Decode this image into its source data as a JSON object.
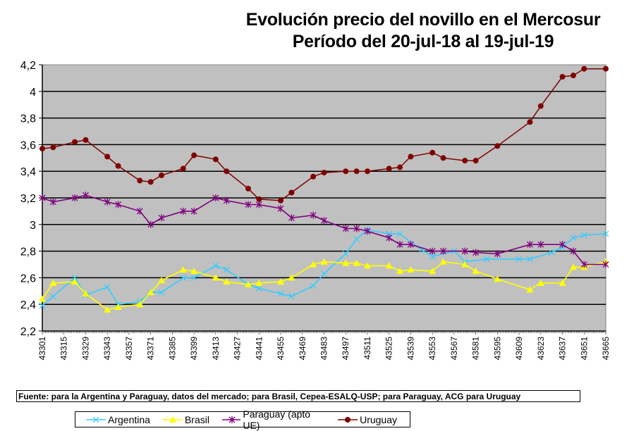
{
  "title": {
    "line1": "Evolución precio del novillo en el Mercosur",
    "line2": "Período del 20-jul-18 al 19-jul-19"
  },
  "source_note": "Fuente: para la Argentina y Paraguay, datos del mercado; para Brasil, Cepea-ESALQ-USP; para Paraguay, ACG para Uruguay",
  "chart_data": {
    "type": "line",
    "title": "Evolución precio del novillo en el Mercosur — Período del 20-jul-18 al 19-jul-19",
    "xlabel": "",
    "ylabel": "",
    "xlim": [
      43301,
      43665
    ],
    "ylim": [
      2.2,
      4.2
    ],
    "x_ticks": [
      "43301",
      "43315",
      "43329",
      "43343",
      "43357",
      "43371",
      "43385",
      "43399",
      "43413",
      "43427",
      "43441",
      "43455",
      "43469",
      "43483",
      "43497",
      "43511",
      "43525",
      "43539",
      "43553",
      "43567",
      "43581",
      "43595",
      "43609",
      "43623",
      "43637",
      "43651",
      "43665"
    ],
    "y_ticks": [
      "2,2",
      "2,4",
      "2,6",
      "2,8",
      "3",
      "3,2",
      "3,4",
      "3,6",
      "3,8",
      "4",
      "4,2"
    ],
    "grid": true,
    "plot_background": "#c0c0c0",
    "legend_position": "bottom",
    "series": [
      {
        "name": "Argentina",
        "color": "#33ccff",
        "marker": "x",
        "points": [
          [
            43301,
            2.39
          ],
          [
            43308,
            2.46
          ],
          [
            43322,
            2.6
          ],
          [
            43329,
            2.47
          ],
          [
            43343,
            2.53
          ],
          [
            43350,
            2.4
          ],
          [
            43364,
            2.42
          ],
          [
            43371,
            2.49
          ],
          [
            43378,
            2.49
          ],
          [
            43392,
            2.6
          ],
          [
            43399,
            2.6
          ],
          [
            43413,
            2.69
          ],
          [
            43420,
            2.66
          ],
          [
            43434,
            2.55
          ],
          [
            43441,
            2.52
          ],
          [
            43455,
            2.48
          ],
          [
            43462,
            2.46
          ],
          [
            43476,
            2.54
          ],
          [
            43483,
            2.63
          ],
          [
            43497,
            2.78
          ],
          [
            43504,
            2.89
          ],
          [
            43511,
            2.96
          ],
          [
            43525,
            2.93
          ],
          [
            43532,
            2.93
          ],
          [
            43546,
            2.81
          ],
          [
            43553,
            2.76
          ],
          [
            43567,
            2.8
          ],
          [
            43574,
            2.72
          ],
          [
            43588,
            2.74
          ],
          [
            43609,
            2.74
          ],
          [
            43616,
            2.74
          ],
          [
            43630,
            2.79
          ],
          [
            43637,
            2.83
          ],
          [
            43644,
            2.9
          ],
          [
            43651,
            2.92
          ],
          [
            43665,
            2.93
          ]
        ]
      },
      {
        "name": "Brasil",
        "color": "#ffff00",
        "marker": "triangle",
        "points": [
          [
            43301,
            2.44
          ],
          [
            43308,
            2.56
          ],
          [
            43322,
            2.57
          ],
          [
            43329,
            2.48
          ],
          [
            43343,
            2.36
          ],
          [
            43350,
            2.38
          ],
          [
            43364,
            2.4
          ],
          [
            43371,
            2.49
          ],
          [
            43378,
            2.58
          ],
          [
            43392,
            2.66
          ],
          [
            43399,
            2.65
          ],
          [
            43413,
            2.6
          ],
          [
            43420,
            2.57
          ],
          [
            43434,
            2.55
          ],
          [
            43441,
            2.56
          ],
          [
            43455,
            2.57
          ],
          [
            43462,
            2.6
          ],
          [
            43476,
            2.7
          ],
          [
            43483,
            2.72
          ],
          [
            43497,
            2.71
          ],
          [
            43504,
            2.71
          ],
          [
            43511,
            2.69
          ],
          [
            43525,
            2.69
          ],
          [
            43532,
            2.65
          ],
          [
            43539,
            2.66
          ],
          [
            43553,
            2.65
          ],
          [
            43560,
            2.72
          ],
          [
            43574,
            2.7
          ],
          [
            43581,
            2.65
          ],
          [
            43595,
            2.59
          ],
          [
            43616,
            2.51
          ],
          [
            43623,
            2.56
          ],
          [
            43637,
            2.56
          ],
          [
            43644,
            2.68
          ],
          [
            43651,
            2.68
          ],
          [
            43665,
            2.72
          ]
        ]
      },
      {
        "name": "Paraguay (apto UE)",
        "color": "#800080",
        "marker": "asterisk",
        "points": [
          [
            43301,
            3.2
          ],
          [
            43308,
            3.17
          ],
          [
            43322,
            3.2
          ],
          [
            43329,
            3.22
          ],
          [
            43343,
            3.17
          ],
          [
            43350,
            3.15
          ],
          [
            43364,
            3.1
          ],
          [
            43371,
            3.0
          ],
          [
            43378,
            3.05
          ],
          [
            43392,
            3.1
          ],
          [
            43399,
            3.1
          ],
          [
            43413,
            3.2
          ],
          [
            43420,
            3.18
          ],
          [
            43434,
            3.15
          ],
          [
            43441,
            3.15
          ],
          [
            43455,
            3.12
          ],
          [
            43462,
            3.05
          ],
          [
            43476,
            3.07
          ],
          [
            43483,
            3.03
          ],
          [
            43497,
            2.97
          ],
          [
            43504,
            2.97
          ],
          [
            43511,
            2.95
          ],
          [
            43525,
            2.9
          ],
          [
            43532,
            2.85
          ],
          [
            43539,
            2.85
          ],
          [
            43553,
            2.8
          ],
          [
            43560,
            2.8
          ],
          [
            43574,
            2.8
          ],
          [
            43581,
            2.79
          ],
          [
            43595,
            2.78
          ],
          [
            43616,
            2.85
          ],
          [
            43623,
            2.85
          ],
          [
            43637,
            2.85
          ],
          [
            43644,
            2.8
          ],
          [
            43651,
            2.7
          ],
          [
            43665,
            2.7
          ]
        ]
      },
      {
        "name": "Uruguay",
        "color": "#800000",
        "marker": "circle",
        "points": [
          [
            43301,
            3.57
          ],
          [
            43308,
            3.58
          ],
          [
            43322,
            3.62
          ],
          [
            43329,
            3.635
          ],
          [
            43343,
            3.51
          ],
          [
            43350,
            3.44
          ],
          [
            43364,
            3.33
          ],
          [
            43371,
            3.32
          ],
          [
            43378,
            3.37
          ],
          [
            43392,
            3.42
          ],
          [
            43399,
            3.52
          ],
          [
            43413,
            3.49
          ],
          [
            43420,
            3.4
          ],
          [
            43434,
            3.27
          ],
          [
            43441,
            3.19
          ],
          [
            43455,
            3.18
          ],
          [
            43462,
            3.24
          ],
          [
            43476,
            3.36
          ],
          [
            43483,
            3.39
          ],
          [
            43497,
            3.4
          ],
          [
            43504,
            3.4
          ],
          [
            43511,
            3.4
          ],
          [
            43525,
            3.42
          ],
          [
            43532,
            3.43
          ],
          [
            43539,
            3.51
          ],
          [
            43553,
            3.54
          ],
          [
            43560,
            3.5
          ],
          [
            43574,
            3.48
          ],
          [
            43581,
            3.48
          ],
          [
            43595,
            3.59
          ],
          [
            43616,
            3.77
          ],
          [
            43623,
            3.89
          ],
          [
            43637,
            4.11
          ],
          [
            43644,
            4.12
          ],
          [
            43651,
            4.17
          ],
          [
            43665,
            4.17
          ]
        ]
      }
    ]
  }
}
